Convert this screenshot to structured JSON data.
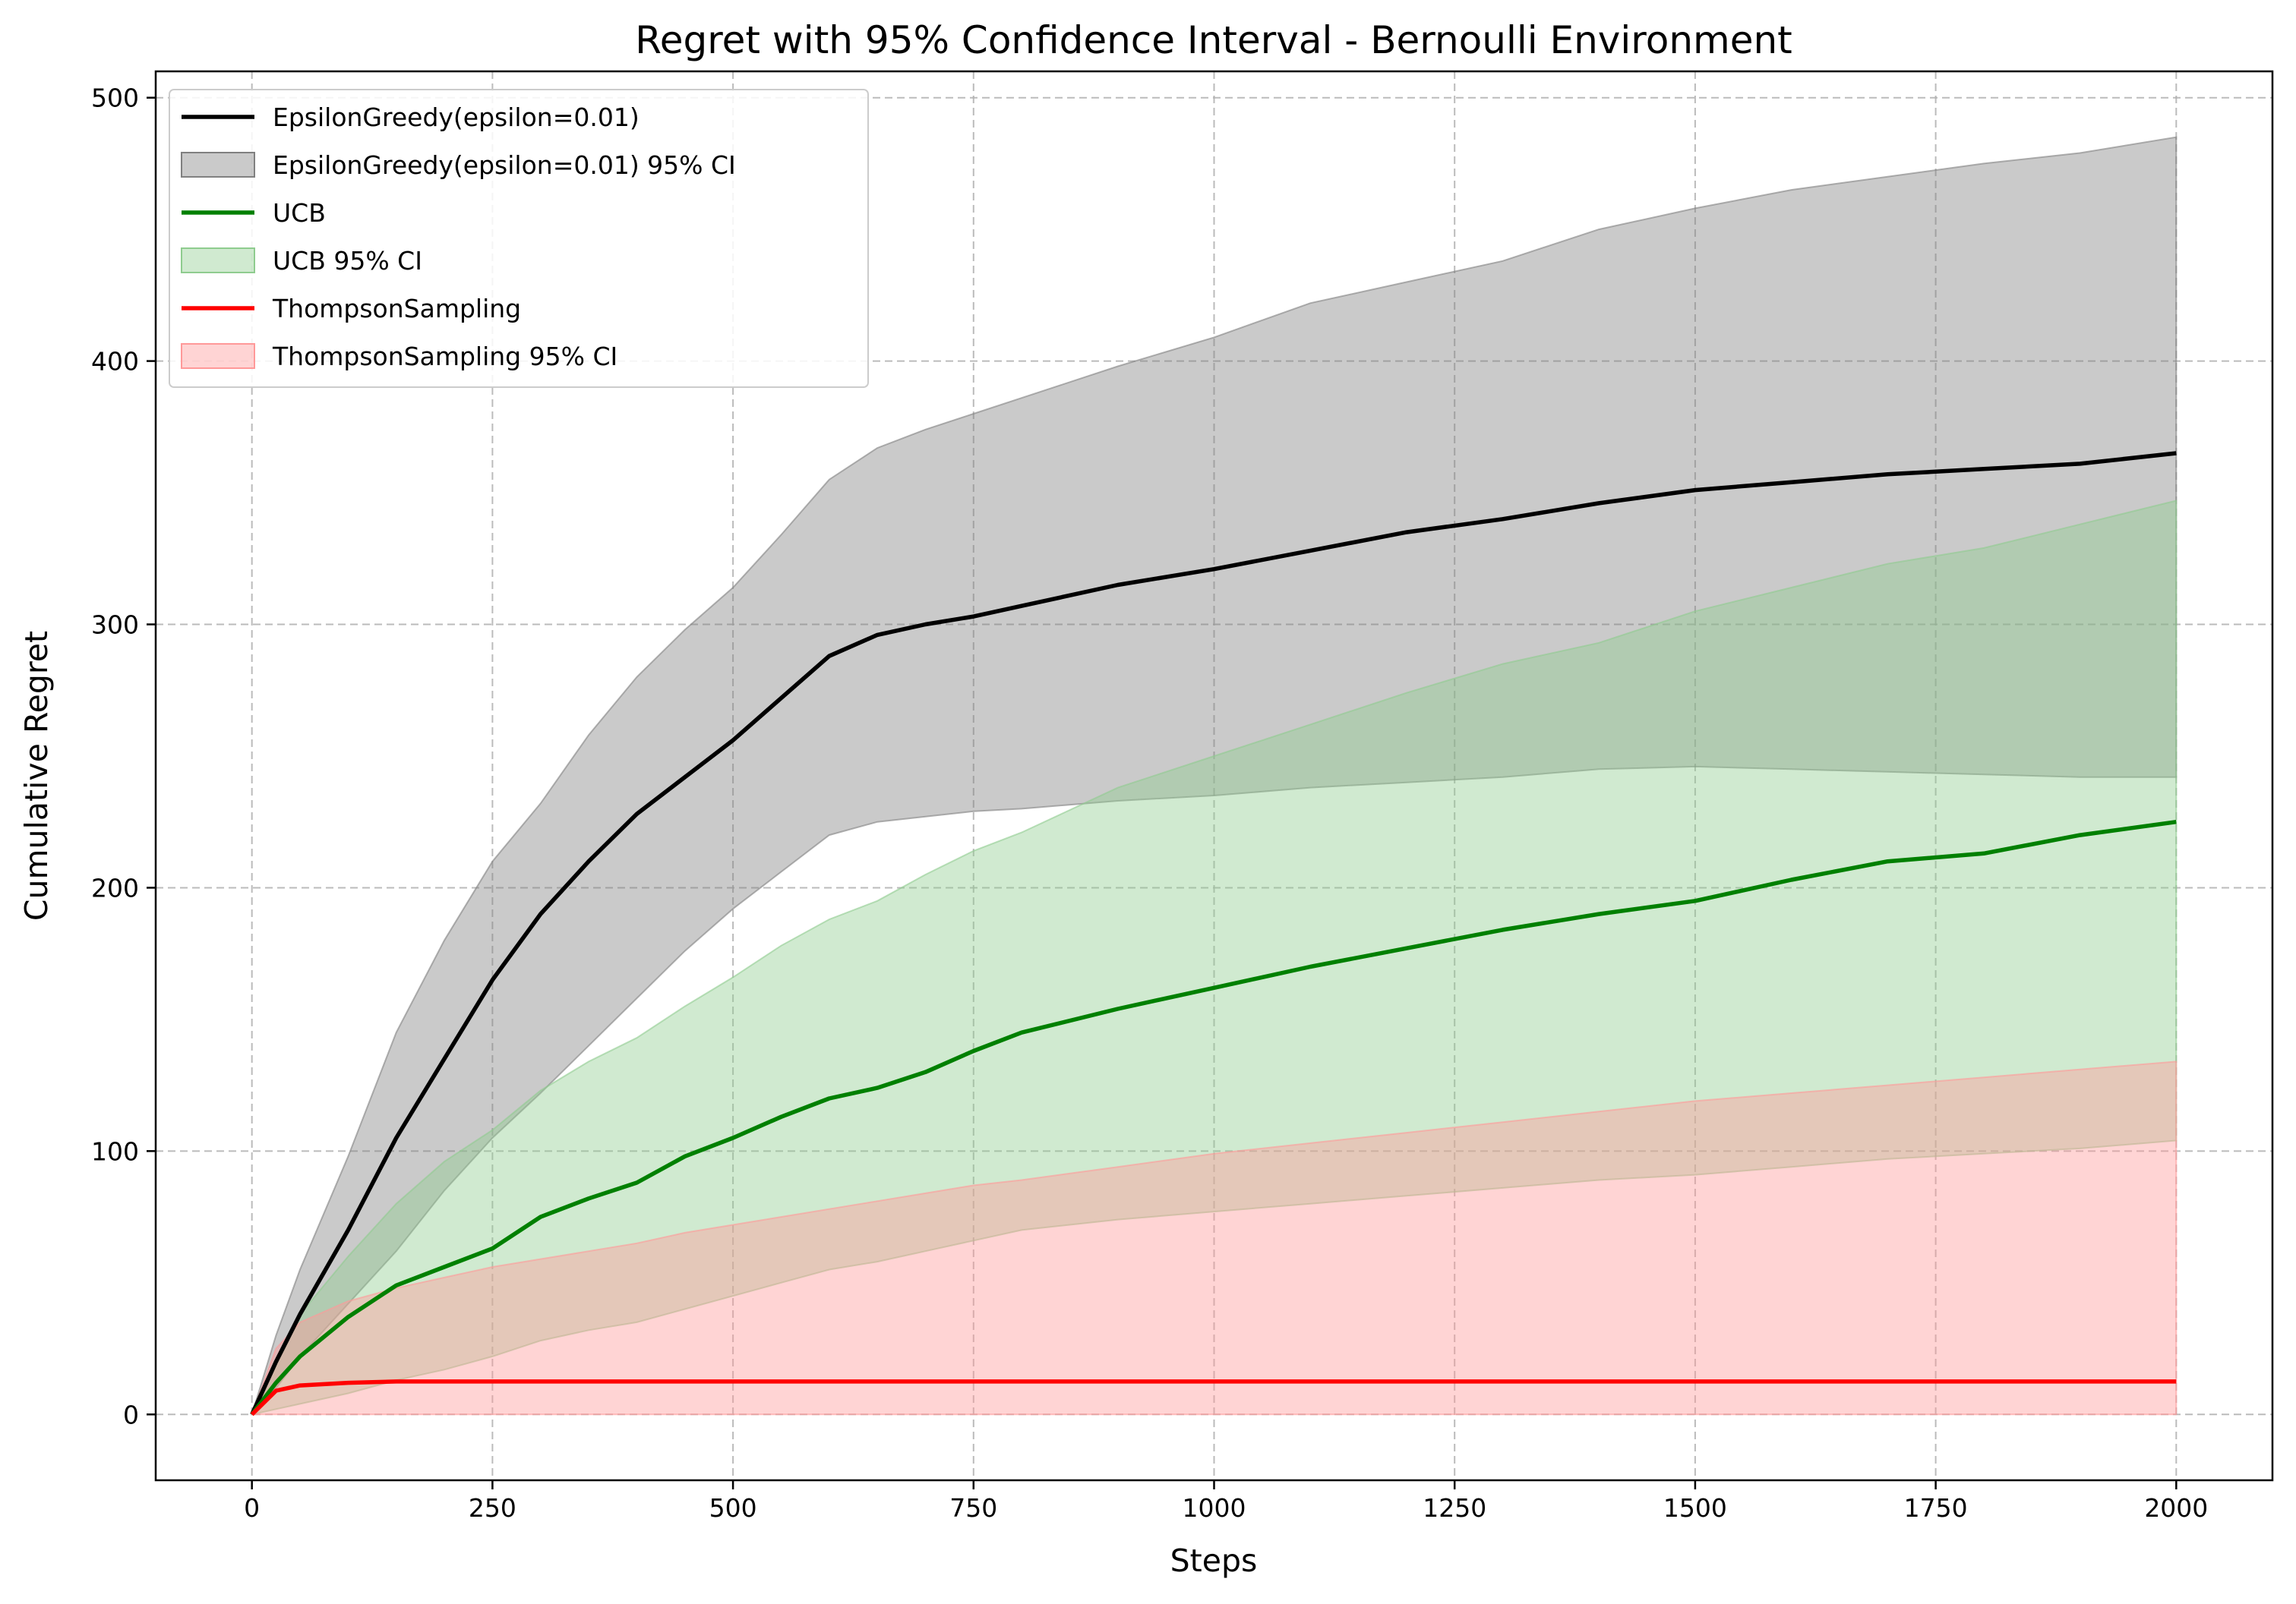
{
  "chart_data": {
    "type": "line",
    "title": "Regret with 95% Confidence Interval - Bernoulli Environment",
    "xlabel": "Steps",
    "ylabel": "Cumulative Regret",
    "xlim": [
      -100,
      2100
    ],
    "ylim": [
      -25,
      510
    ],
    "grid": true,
    "legend_position": "top-left",
    "x_ticks": [
      0,
      250,
      500,
      750,
      1000,
      1250,
      1500,
      1750,
      2000
    ],
    "x_tick_labels": [
      "0",
      "250",
      "500",
      "750",
      "1000",
      "1250",
      "1500",
      "1750",
      "2000"
    ],
    "y_ticks": [
      0,
      100,
      200,
      300,
      400,
      500
    ],
    "y_tick_labels": [
      "0",
      "100",
      "200",
      "300",
      "400",
      "500"
    ],
    "x": [
      0,
      25,
      50,
      100,
      150,
      200,
      250,
      300,
      350,
      400,
      450,
      500,
      550,
      600,
      650,
      700,
      750,
      800,
      900,
      1000,
      1100,
      1200,
      1300,
      1400,
      1500,
      1600,
      1700,
      1800,
      1900,
      2000
    ],
    "series": [
      {
        "name": "EpsilonGreedy(epsilon=0.01)",
        "color": "#000000",
        "ci_label": "EpsilonGreedy(epsilon=0.01) 95% CI",
        "ci_color": "#808080",
        "values": [
          0,
          20,
          38,
          70,
          105,
          135,
          165,
          190,
          210,
          228,
          242,
          256,
          272,
          288,
          296,
          300,
          303,
          307,
          315,
          321,
          328,
          335,
          340,
          346,
          351,
          354,
          357,
          359,
          361,
          365
        ],
        "lower": [
          0,
          10,
          22,
          42,
          62,
          85,
          105,
          122,
          140,
          158,
          176,
          192,
          206,
          220,
          225,
          227,
          229,
          230,
          233,
          235,
          238,
          240,
          242,
          245,
          246,
          245,
          244,
          243,
          242,
          242
        ],
        "upper": [
          0,
          30,
          55,
          98,
          145,
          180,
          210,
          232,
          258,
          280,
          298,
          314,
          334,
          355,
          367,
          374,
          380,
          386,
          398,
          409,
          422,
          430,
          438,
          450,
          458,
          465,
          470,
          475,
          479,
          485
        ]
      },
      {
        "name": "UCB",
        "color": "#008000",
        "ci_label": "UCB 95% CI",
        "ci_color": "#8fcc8f",
        "values": [
          0,
          12,
          22,
          37,
          49,
          56,
          63,
          75,
          82,
          88,
          98,
          105,
          113,
          120,
          124,
          130,
          138,
          145,
          154,
          162,
          170,
          177,
          184,
          190,
          195,
          203,
          210,
          213,
          220,
          225
        ],
        "lower": [
          0,
          2,
          4,
          8,
          13,
          17,
          22,
          28,
          32,
          35,
          40,
          45,
          50,
          55,
          58,
          62,
          66,
          70,
          74,
          77,
          80,
          83,
          86,
          89,
          91,
          94,
          97,
          99,
          101,
          104
        ],
        "upper": [
          0,
          20,
          38,
          60,
          80,
          96,
          108,
          123,
          134,
          143,
          155,
          166,
          178,
          188,
          195,
          205,
          214,
          221,
          238,
          250,
          262,
          274,
          285,
          293,
          305,
          314,
          323,
          329,
          338,
          347
        ]
      },
      {
        "name": "ThompsonSampling",
        "color": "#ff0000",
        "ci_label": "ThompsonSampling 95% CI",
        "ci_color": "#ff9999",
        "values": [
          0,
          9,
          11,
          12,
          12.5,
          12.5,
          12.5,
          12.5,
          12.5,
          12.5,
          12.5,
          12.5,
          12.5,
          12.5,
          12.5,
          12.5,
          12.5,
          12.5,
          12.5,
          12.5,
          12.5,
          12.5,
          12.5,
          12.5,
          12.5,
          12.5,
          12.5,
          12.5,
          12.5,
          12.5
        ],
        "lower": [
          0,
          0,
          0,
          0,
          0,
          0,
          0,
          0,
          0,
          0,
          0,
          0,
          0,
          0,
          0,
          0,
          0,
          0,
          0,
          0,
          0,
          0,
          0,
          0,
          0,
          0,
          0,
          0,
          0,
          0
        ],
        "upper": [
          0,
          25,
          35,
          43,
          48,
          52,
          56,
          59,
          62,
          65,
          69,
          72,
          75,
          78,
          81,
          84,
          87,
          89,
          94,
          99,
          103,
          107,
          111,
          115,
          119,
          122,
          125,
          128,
          131,
          134
        ]
      }
    ]
  }
}
